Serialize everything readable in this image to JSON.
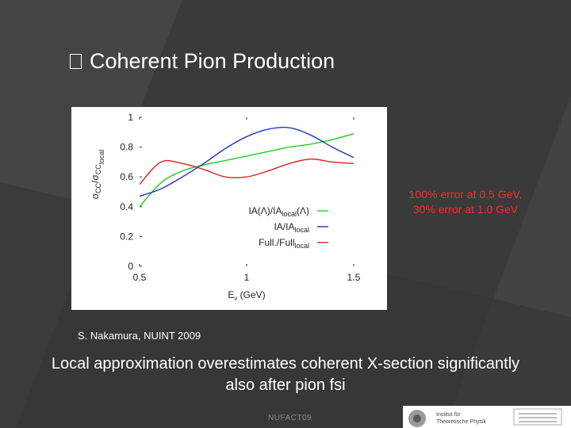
{
  "slide": {
    "title": "Coherent Pion Production",
    "annotation_line1": "100% error at 0.5 GeV,",
    "annotation_line2": "30% error at 1.0 GeV",
    "citation": "S. Nakamura, NUINT 2009",
    "conclusion_line1": "Local approximation overestimates coherent X-section significantly",
    "conclusion_line2": "also after pion fsi",
    "footer": "NUFACT09",
    "logo_text_1": "Institut für",
    "logo_text_2": "Theoretische Physik"
  },
  "chart_data": {
    "type": "line",
    "title": "",
    "xlabel": "Eν (GeV)",
    "ylabel": "σCC/σCC local",
    "xlim": [
      0.5,
      1.5
    ],
    "ylim": [
      0,
      1
    ],
    "x_ticks": [
      "0.5",
      "1",
      "1.5"
    ],
    "y_ticks": [
      "0",
      "0.2",
      "0.4",
      "0.6",
      "0.8",
      "1"
    ],
    "grid": false,
    "legend_position": "bottom-right",
    "series": [
      {
        "name": "IA(Λ)/IAlocal(Λ)",
        "color": "#22cc22",
        "x": [
          0.5,
          0.6,
          0.7,
          0.8,
          0.9,
          1.0,
          1.1,
          1.2,
          1.3,
          1.4,
          1.5
        ],
        "y": [
          0.4,
          0.56,
          0.64,
          0.68,
          0.71,
          0.74,
          0.77,
          0.8,
          0.82,
          0.85,
          0.89
        ]
      },
      {
        "name": "IA/IAlocal",
        "color": "#2233cc",
        "x": [
          0.5,
          0.6,
          0.7,
          0.8,
          0.9,
          1.0,
          1.1,
          1.2,
          1.3,
          1.4,
          1.5
        ],
        "y": [
          0.47,
          0.52,
          0.6,
          0.69,
          0.79,
          0.87,
          0.92,
          0.93,
          0.88,
          0.8,
          0.73
        ]
      },
      {
        "name": "Full./Fulllocal",
        "color": "#dd2222",
        "x": [
          0.5,
          0.6,
          0.7,
          0.8,
          0.9,
          1.0,
          1.1,
          1.2,
          1.3,
          1.4,
          1.5
        ],
        "y": [
          0.55,
          0.7,
          0.69,
          0.65,
          0.6,
          0.6,
          0.64,
          0.69,
          0.72,
          0.7,
          0.69
        ]
      }
    ]
  },
  "legend_parts": [
    {
      "main": "IA(Λ)/IA",
      "sub": "local",
      "tail": "(Λ)"
    },
    {
      "main": "IA/IA",
      "sub": "local",
      "tail": ""
    },
    {
      "main": "Full./Full",
      "sub": "local",
      "tail": ""
    }
  ]
}
